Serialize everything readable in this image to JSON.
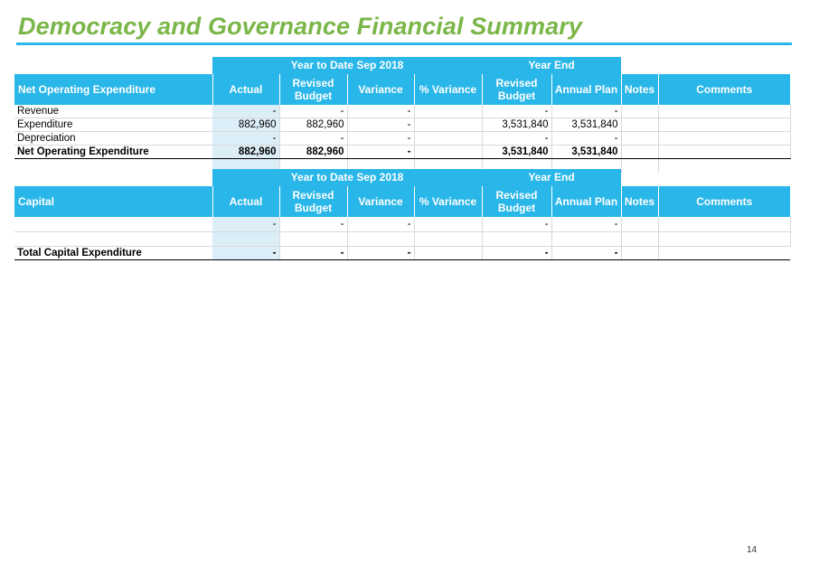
{
  "title": "Democracy and Governance Financial Summary",
  "page_number": "14",
  "groups": {
    "ytd": "Year to Date Sep 2018",
    "year_end": "Year End"
  },
  "columns": {
    "actual": "Actual",
    "revised_budget": "Revised Budget",
    "variance": "Variance",
    "pct_variance": "% Variance",
    "ye_revised_budget": "Revised Budget",
    "annual_plan": "Annual Plan",
    "notes": "Notes",
    "comments": "Comments"
  },
  "operating": {
    "header": "Net Operating Expenditure",
    "rows": [
      {
        "label": "Revenue",
        "actual": "-",
        "revised_budget": "-",
        "variance": "-",
        "pct_variance": "",
        "ye_revised_budget": "-",
        "annual_plan": "-",
        "notes": "",
        "comments": ""
      },
      {
        "label": "Expenditure",
        "actual": "882,960",
        "revised_budget": "882,960",
        "variance": "-",
        "pct_variance": "",
        "ye_revised_budget": "3,531,840",
        "annual_plan": "3,531,840",
        "notes": "",
        "comments": ""
      },
      {
        "label": "Depreciation",
        "actual": "-",
        "revised_budget": "-",
        "variance": "-",
        "pct_variance": "",
        "ye_revised_budget": "-",
        "annual_plan": "-",
        "notes": "",
        "comments": ""
      }
    ],
    "total": {
      "label": "Net Operating Expenditure",
      "actual": "882,960",
      "revised_budget": "882,960",
      "variance": "-",
      "pct_variance": "",
      "ye_revised_budget": "3,531,840",
      "annual_plan": "3,531,840"
    }
  },
  "capital": {
    "header": "Capital",
    "rows": [
      {
        "label": "",
        "actual": "-",
        "revised_budget": "-",
        "variance": "-",
        "pct_variance": "",
        "ye_revised_budget": "-",
        "annual_plan": "-",
        "notes": "",
        "comments": ""
      }
    ],
    "total": {
      "label": "Total Capital Expenditure",
      "actual": "-",
      "revised_budget": "-",
      "variance": "-",
      "pct_variance": "",
      "ye_revised_budget": "-",
      "annual_plan": "-"
    }
  }
}
